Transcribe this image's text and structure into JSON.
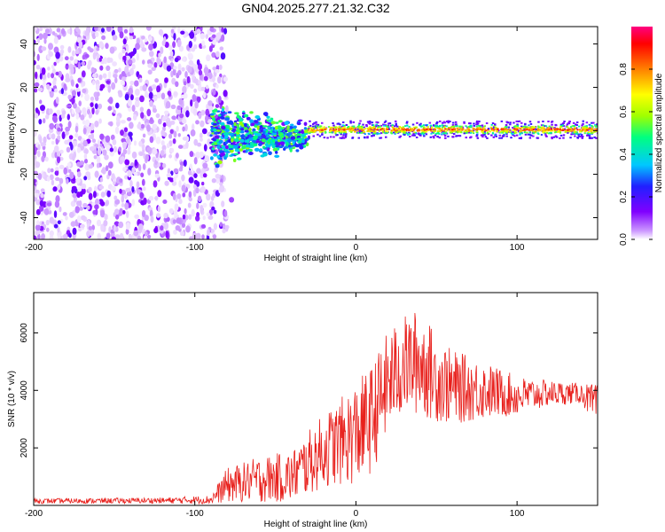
{
  "chart_data": [
    {
      "type": "heatmap",
      "title": "GN04.2025.277.21.32.C32",
      "xlabel": "Height of straight line (km)",
      "ylabel": "Frequency (Hz)",
      "xlim": [
        -200,
        150
      ],
      "ylim": [
        -50,
        48
      ],
      "xticks": [
        -200,
        -100,
        0,
        100
      ],
      "yticks": [
        -40,
        -20,
        0,
        20,
        40
      ],
      "colorbar": {
        "label": "Normalized spectral amplitude",
        "range": [
          0,
          1
        ],
        "ticks": [
          0.0,
          0.2,
          0.4,
          0.6,
          0.8
        ],
        "colormap": [
          "#ffffff",
          "#cc99ff",
          "#8000ff",
          "#2020ff",
          "#00c8ff",
          "#00ff80",
          "#a0ff00",
          "#ffff00",
          "#ff8000",
          "#ff0000",
          "#ff0080"
        ]
      },
      "regions": [
        {
          "name": "noise",
          "x_range": [
            -200,
            -80
          ],
          "y_range": [
            -50,
            48
          ],
          "amplitude": [
            0.0,
            0.25
          ]
        },
        {
          "name": "transition",
          "x_range": [
            -90,
            -30
          ],
          "y_range": [
            -15,
            8
          ],
          "amplitude": [
            0.2,
            0.6
          ]
        },
        {
          "name": "signal-band",
          "x_range": [
            -30,
            150
          ],
          "center_hz": 0.5,
          "halfwidth_hz": 2.5,
          "amplitude": [
            0.4,
            0.95
          ]
        }
      ]
    },
    {
      "type": "line",
      "title": "",
      "xlabel": "Height of straight line (km)",
      "ylabel": "SNR (10 * v/v)",
      "xlim": [
        -200,
        150
      ],
      "ylim": [
        0,
        7400
      ],
      "xticks": [
        -200,
        -100,
        0,
        100
      ],
      "yticks": [
        2000,
        4000,
        6000
      ],
      "line_color": "#e8201c",
      "envelope": {
        "x": [
          -200,
          -120,
          -90,
          -80,
          -60,
          -40,
          -20,
          -10,
          0,
          10,
          20,
          30,
          40,
          50,
          60,
          80,
          100,
          120,
          140,
          150
        ],
        "mean": [
          150,
          170,
          200,
          700,
          900,
          1000,
          1900,
          2200,
          2500,
          3000,
          4300,
          4900,
          5000,
          4400,
          4100,
          4000,
          3800,
          3900,
          3900,
          3400
        ],
        "amplitude": [
          90,
          100,
          150,
          600,
          800,
          900,
          1300,
          1500,
          1800,
          1900,
          1800,
          1700,
          1900,
          1500,
          1300,
          1000,
          700,
          450,
          350,
          800
        ]
      }
    }
  ]
}
